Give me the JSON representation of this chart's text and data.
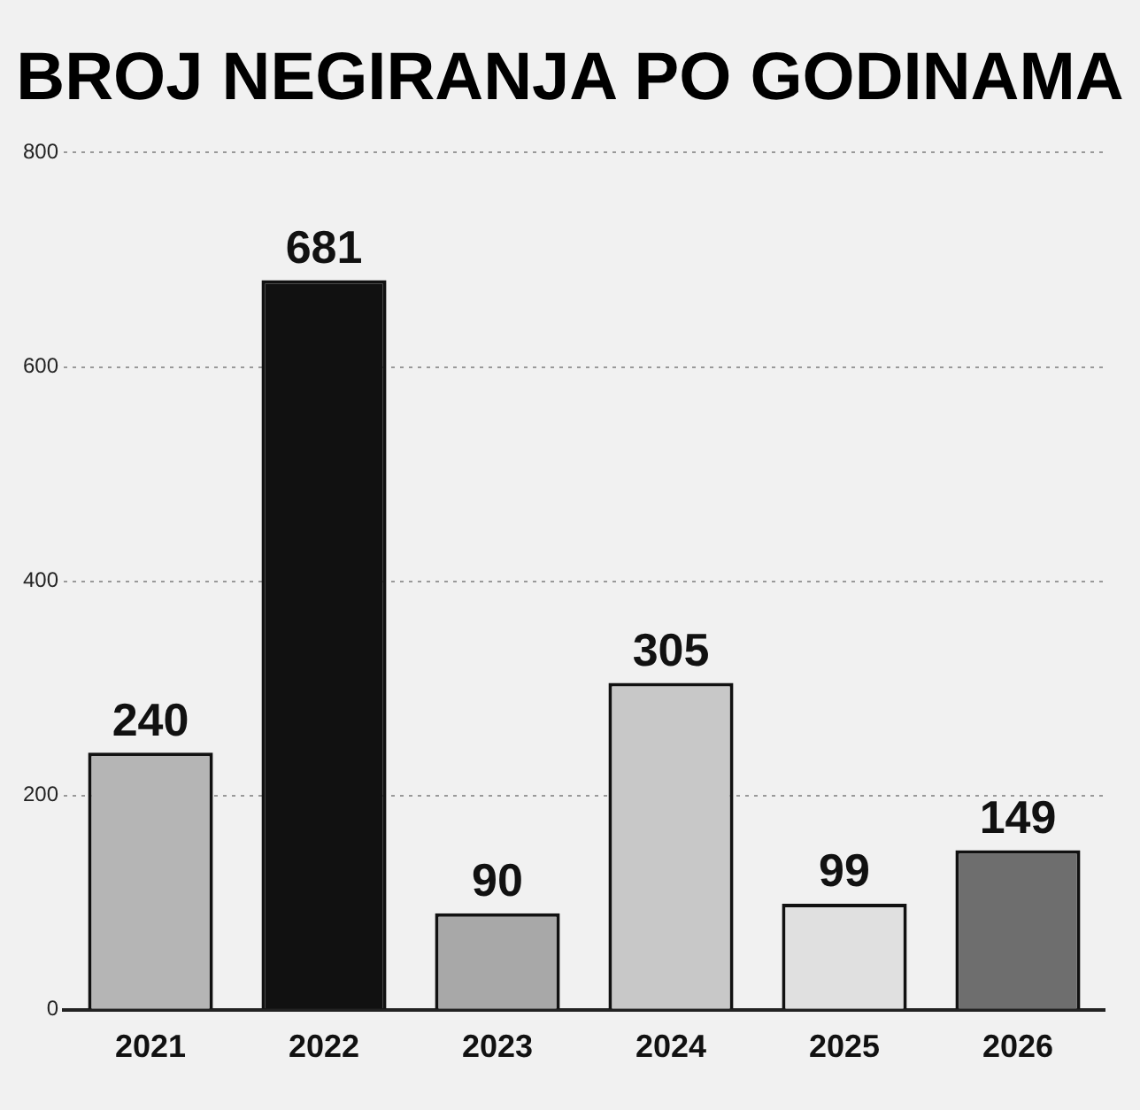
{
  "chart_data": {
    "type": "bar",
    "title": "BROJ NEGIRANJA PO GODINAMA",
    "categories": [
      "2021",
      "2022",
      "2023",
      "2024",
      "2025",
      "2026"
    ],
    "values": [
      240,
      681,
      90,
      305,
      99,
      149
    ],
    "colors": [
      "#b5b5b5",
      "#111111",
      "#a8a8a8",
      "#c8c8c8",
      "#e0e0e0",
      "#6e6e6e"
    ],
    "ylim": [
      0,
      800
    ],
    "yticks": [
      0,
      200,
      400,
      600,
      800
    ],
    "grid": "y",
    "data_labels": true
  }
}
